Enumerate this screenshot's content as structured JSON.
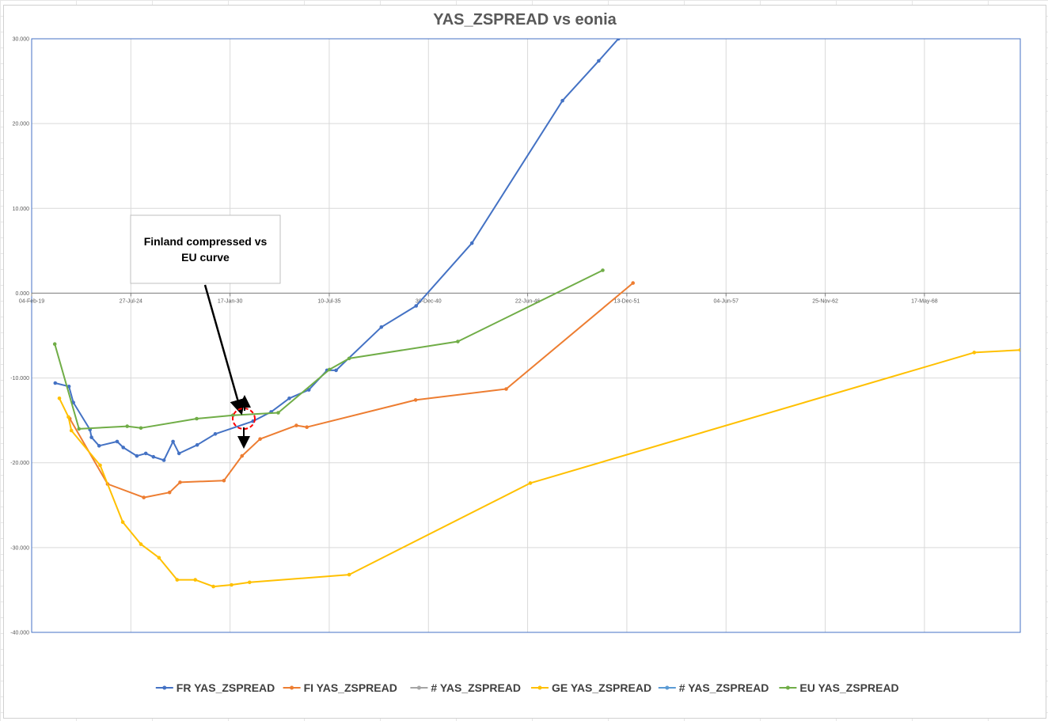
{
  "chart_data": {
    "type": "line",
    "title": "YAS_ZSPREAD vs eonia",
    "xlabel": "",
    "ylabel": "",
    "x_range": [
      "2019-02-04",
      "2073-09-01"
    ],
    "ylim": [
      -40,
      30
    ],
    "y_ticks": [
      30,
      20,
      10,
      0,
      -10,
      -20,
      -30,
      -40
    ],
    "y_tick_labels": [
      "30.000",
      "20.000",
      "10.000",
      "0.000",
      "-10.000",
      "-20.000",
      "-30.000",
      "-40.000"
    ],
    "x_ticks": [
      "2019-02-04",
      "2024-07-27",
      "2030-01-17",
      "2035-07-10",
      "2040-12-30",
      "2046-06-22",
      "2051-12-13",
      "2057-06-04",
      "2062-11-25",
      "2068-05-17"
    ],
    "x_tick_labels": [
      "04-Feb-19",
      "27-Jul-24",
      "17-Jan-30",
      "10-Jul-35",
      "30-Dec-40",
      "22-Jun-46",
      "13-Dec-51",
      "04-Jun-57",
      "25-Nov-62",
      "17-May-68"
    ],
    "grid": true,
    "legend_position": "bottom",
    "series": [
      {
        "name": "FR YAS_ZSPREAD",
        "color": "#4472C4",
        "points": [
          [
            "2020-05-25",
            -10.6
          ],
          [
            "2021-02-25",
            -11.0
          ],
          [
            "2021-05-25",
            -12.9
          ],
          [
            "2022-04-25",
            -16.1
          ],
          [
            "2022-05-25",
            -17.0
          ],
          [
            "2022-10-25",
            -18.0
          ],
          [
            "2023-10-25",
            -17.5
          ],
          [
            "2024-02-25",
            -18.2
          ],
          [
            "2024-11-25",
            -19.2
          ],
          [
            "2025-05-25",
            -18.9
          ],
          [
            "2025-10-25",
            -19.3
          ],
          [
            "2026-05-25",
            -19.7
          ],
          [
            "2026-11-25",
            -17.5
          ],
          [
            "2027-03-25",
            -18.9
          ],
          [
            "2028-03-25",
            -17.9
          ],
          [
            "2029-03-25",
            -16.6
          ],
          [
            "2031-04-25",
            -15.1
          ],
          [
            "2032-04-25",
            -14.0
          ],
          [
            "2033-04-25",
            -12.4
          ],
          [
            "2034-05-25",
            -11.4
          ],
          [
            "2035-05-25",
            -9.1
          ],
          [
            "2035-11-25",
            -9.1
          ],
          [
            "2038-05-25",
            -4.0
          ],
          [
            "2040-04-25",
            -1.5
          ],
          [
            "2043-05-25",
            5.9
          ],
          [
            "2048-05-25",
            22.7
          ],
          [
            "2050-05-25",
            27.4
          ],
          [
            "2051-06-25",
            30.0
          ]
        ]
      },
      {
        "name": "FI YAS_ZSPREAD",
        "color": "#ED7D31",
        "points": [
          [
            "2021-03-15",
            -14.8
          ],
          [
            "2023-04-15",
            -22.5
          ],
          [
            "2025-04-15",
            -24.1
          ],
          [
            "2026-09-15",
            -23.5
          ],
          [
            "2027-04-15",
            -22.3
          ],
          [
            "2029-09-15",
            -22.1
          ],
          [
            "2030-09-15",
            -19.2
          ],
          [
            "2031-09-15",
            -17.2
          ],
          [
            "2033-09-15",
            -15.6
          ],
          [
            "2034-04-15",
            -15.8
          ],
          [
            "2040-04-15",
            -12.6
          ],
          [
            "2045-04-15",
            -11.3
          ],
          [
            "2052-04-15",
            1.2
          ]
        ]
      },
      {
        "name": "# YAS_ZSPREAD",
        "color": "#A5A5A5",
        "points": []
      },
      {
        "name": "GE YAS_ZSPREAD",
        "color": "#FFC000",
        "points": [
          [
            "2020-08-15",
            -12.4
          ],
          [
            "2021-02-15",
            -14.6
          ],
          [
            "2021-04-15",
            -16.2
          ],
          [
            "2022-11-15",
            -20.3
          ],
          [
            "2024-02-15",
            -27.0
          ],
          [
            "2025-02-15",
            -29.6
          ],
          [
            "2026-02-15",
            -31.2
          ],
          [
            "2027-02-15",
            -33.8
          ],
          [
            "2028-02-15",
            -33.8
          ],
          [
            "2029-02-15",
            -34.6
          ],
          [
            "2030-02-15",
            -34.4
          ],
          [
            "2031-02-15",
            -34.1
          ],
          [
            "2036-08-15",
            -33.2
          ],
          [
            "2046-08-15",
            -22.4
          ],
          [
            "2071-02-15",
            -7.0
          ],
          [
            "2073-09-01",
            -6.7
          ]
        ]
      },
      {
        "name": "# YAS_ZSPREAD",
        "color": "#5B9BD5",
        "points": []
      },
      {
        "name": "EU YAS_ZSPREAD",
        "color": "#70AD47",
        "points": [
          [
            "2020-05-15",
            -6.0
          ],
          [
            "2021-09-15",
            -16.0
          ],
          [
            "2024-05-15",
            -15.7
          ],
          [
            "2025-02-15",
            -15.9
          ],
          [
            "2028-03-15",
            -14.8
          ],
          [
            "2030-03-15",
            -14.4
          ],
          [
            "2032-09-15",
            -14.1
          ],
          [
            "2035-07-15",
            -9.0
          ],
          [
            "2036-08-15",
            -7.7
          ],
          [
            "2042-08-15",
            -5.7
          ],
          [
            "2050-08-15",
            2.7
          ]
        ]
      }
    ]
  },
  "annotation": {
    "lines": [
      "Finland compressed vs",
      "EU curve"
    ]
  }
}
